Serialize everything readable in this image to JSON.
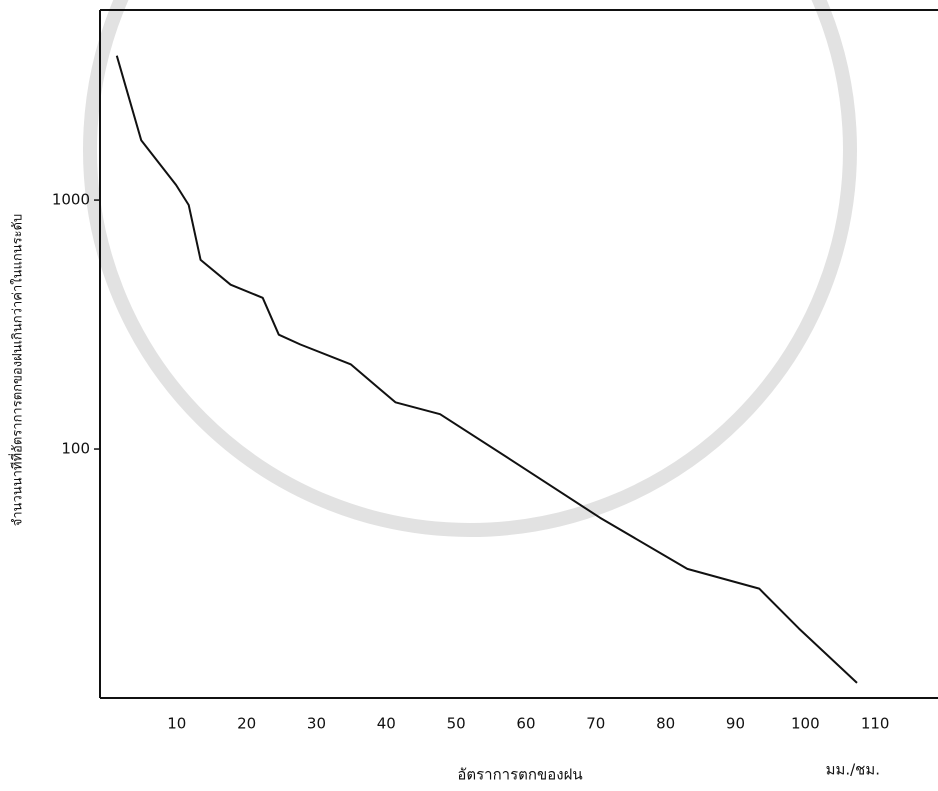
{
  "chart_data": {
    "type": "line",
    "x_label": "อัตราการตกของฝน",
    "x_unit": "มม./ชม.",
    "y_label": "จำนวนนาทีที่อัตราการตกของฝนเกินกว่าค่าในแกนระดับ",
    "x": [
      1.4,
      4.9,
      9.9,
      11.7,
      13.4,
      17.7,
      22.3,
      24.6,
      27.7,
      34.9,
      41.3,
      47.7,
      57.7,
      70.6,
      83.1,
      93.4,
      99.1,
      107.4
    ],
    "values": [
      3800,
      1740,
      1150,
      955,
      575,
      457,
      405,
      288,
      263,
      219,
      154,
      138,
      91,
      53,
      33,
      27.5,
      19,
      11.5
    ],
    "color": "#111111",
    "xlim": [
      -1,
      119
    ],
    "xticks": [
      10,
      20,
      30,
      40,
      50,
      60,
      70,
      80,
      90,
      100,
      110
    ],
    "ylim": [
      10,
      5800
    ],
    "yticks": [
      100,
      1000
    ],
    "log_y": true,
    "grid": false
  }
}
